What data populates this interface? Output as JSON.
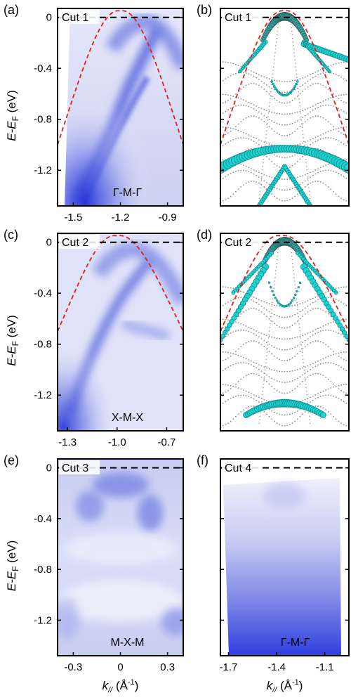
{
  "chart_data": [
    {
      "panel": "(a)",
      "type": "heatmap",
      "title": "Cut 1",
      "path_label": "Γ-M-Γ",
      "ylabel_main": "E-E",
      "ylabel_sub": "F",
      "ylabel_unit": " (eV)",
      "yticks": [
        "0",
        "-0.4",
        "-0.8",
        "-1.2"
      ],
      "ytick_values": [
        0,
        -0.4,
        -0.8,
        -1.2
      ],
      "xticks": [
        "-1.5",
        "-1.2",
        "-0.9"
      ],
      "xtick_values": [
        -1.5,
        -1.2,
        -0.9
      ],
      "xlim": [
        -1.6,
        -0.8
      ],
      "ylim": [
        -1.48,
        0.07
      ],
      "overlay": {
        "style": "red dashed",
        "apex": [
          -1.2,
          0.05
        ],
        "ends": [
          [
            -1.6,
            -1.0
          ],
          [
            -0.8,
            -1.0
          ]
        ]
      },
      "fermi_line": 0
    },
    {
      "panel": "(b)",
      "type": "scatter",
      "title": "Cut 1",
      "description": "calculated bands",
      "xlim": [
        -1.6,
        -0.8
      ],
      "ylim": [
        -1.48,
        0.07
      ],
      "overlay": {
        "style": "red dashed",
        "apex": [
          -1.2,
          0.05
        ],
        "ends": [
          [
            -1.6,
            -1.0
          ],
          [
            -0.8,
            -1.0
          ]
        ]
      },
      "fermi_line": 0
    },
    {
      "panel": "(c)",
      "type": "heatmap",
      "title": "Cut 2",
      "path_label": "X-M-X",
      "ylabel_main": "E-E",
      "ylabel_sub": "F",
      "ylabel_unit": " (eV)",
      "yticks": [
        "0",
        "-0.4",
        "-0.8",
        "-1.2"
      ],
      "ytick_values": [
        0,
        -0.4,
        -0.8,
        -1.2
      ],
      "xticks": [
        "-1.3",
        "-1.0",
        "-0.7"
      ],
      "xtick_values": [
        -1.3,
        -1.0,
        -0.7
      ],
      "xlim": [
        -1.36,
        -0.6
      ],
      "ylim": [
        -1.48,
        0.07
      ],
      "overlay": {
        "style": "red dashed",
        "apex": [
          -1.0,
          0.05
        ],
        "ends": [
          [
            -1.36,
            -0.7
          ],
          [
            -0.6,
            -0.7
          ]
        ]
      },
      "fermi_line": 0
    },
    {
      "panel": "(d)",
      "type": "scatter",
      "title": "Cut 2",
      "description": "calculated bands",
      "xlim": [
        -1.36,
        -0.6
      ],
      "ylim": [
        -1.48,
        0.07
      ],
      "overlay": {
        "style": "red dashed",
        "apex": [
          -1.0,
          0.05
        ],
        "ends": [
          [
            -1.36,
            -0.7
          ],
          [
            -0.6,
            -0.7
          ]
        ]
      },
      "fermi_line": 0
    },
    {
      "panel": "(e)",
      "type": "heatmap",
      "title": "Cut 3",
      "path_label": "M-X-M",
      "ylabel_main": "E-E",
      "ylabel_sub": "F",
      "ylabel_unit": " (eV)",
      "yticks": [
        "0",
        "-0.4",
        "-0.8",
        "-1.2"
      ],
      "ytick_values": [
        0,
        -0.4,
        -0.8,
        -1.2
      ],
      "xticks": [
        "-0.3",
        "0",
        "0.3"
      ],
      "xtick_values": [
        -0.3,
        0,
        0.3
      ],
      "xlim": [
        -0.4,
        0.4
      ],
      "ylim": [
        -1.48,
        0.07
      ],
      "xlabel_main": "k",
      "xlabel_sub": "//",
      "xlabel_unit": " (Å",
      "xlabel_sup": "-1",
      "xlabel_close": ")",
      "fermi_line": 0
    },
    {
      "panel": "(f)",
      "type": "heatmap",
      "title": "Cut 4",
      "path_label": "Γ-M-Γ",
      "xticks": [
        "-1.7",
        "-1.4",
        "-1.1"
      ],
      "xtick_values": [
        -1.7,
        -1.4,
        -1.1
      ],
      "xlim": [
        -1.75,
        -0.95
      ],
      "ylim": [
        -1.48,
        0.07
      ],
      "xlabel_main": "k",
      "xlabel_sub": "//",
      "xlabel_unit": " (Å",
      "xlabel_sup": "-1",
      "xlabel_close": ")",
      "fermi_line": 0
    }
  ]
}
